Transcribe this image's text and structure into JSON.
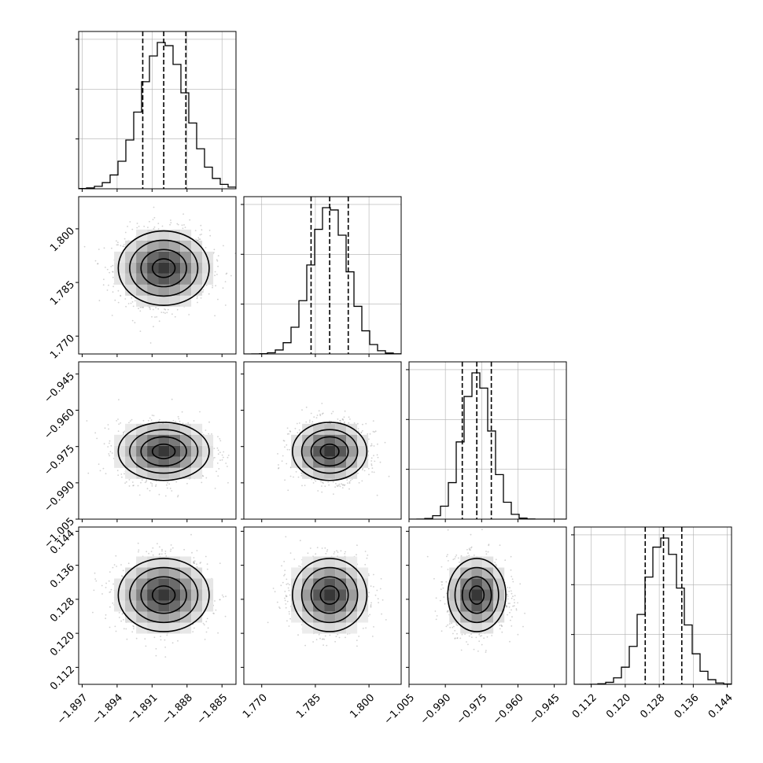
{
  "chart_data": {
    "type": "corner",
    "colors": {
      "line": "#000000",
      "grid": "#b0b0b0",
      "scatter": "#9a9a9a"
    },
    "grid": true,
    "parameters": [
      {
        "mean": -1.89,
        "sigma": 0.00195,
        "ticks": [
          -1.897,
          -1.894,
          -1.891,
          -1.888,
          -1.885
        ],
        "tick_labels": [
          "−1.897",
          "−1.894",
          "−1.891",
          "−1.888",
          "−1.885"
        ],
        "quantiles": [
          -1.8918,
          -1.89,
          -1.8881
        ],
        "range": [
          -1.8973,
          -1.8838
        ]
      },
      {
        "mean": 1.789,
        "sigma": 0.0052,
        "ticks": [
          1.77,
          1.785,
          1.8
        ],
        "tick_labels": [
          "1.770",
          "1.785",
          "1.800"
        ],
        "quantiles": [
          1.7838,
          1.789,
          1.7942
        ],
        "range": [
          1.765,
          1.809
        ]
      },
      {
        "mean": -0.977,
        "sigma": 0.006,
        "ticks": [
          -1.005,
          -0.99,
          -0.975,
          -0.96,
          -0.945
        ],
        "tick_labels": [
          "−1.005",
          "−0.990",
          "−0.975",
          "−0.960",
          "−0.945"
        ],
        "quantiles": [
          -0.983,
          -0.977,
          -0.971
        ],
        "range": [
          -1.005,
          -0.94
        ]
      },
      {
        "mean": 0.129,
        "sigma": 0.0043,
        "ticks": [
          0.112,
          0.12,
          0.128,
          0.136,
          0.144
        ],
        "tick_labels": [
          "0.112",
          "0.120",
          "0.128",
          "0.136",
          "0.144"
        ],
        "quantiles": [
          0.1247,
          0.129,
          0.1333
        ],
        "range": [
          0.108,
          0.145
        ]
      }
    ],
    "histogram": {
      "bins": 20,
      "style": "step"
    },
    "contours": {
      "levels_sigma": [
        0.5,
        1.0,
        1.5,
        2.0
      ]
    }
  }
}
